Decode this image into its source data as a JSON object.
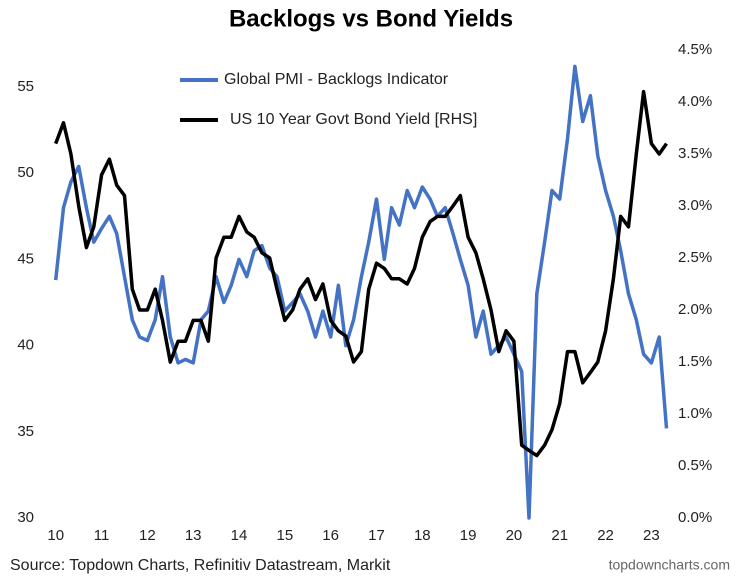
{
  "chart_data": {
    "type": "line",
    "title": "Backlogs vs Bond Yields",
    "source": "Source: Topdown Charts, Refinitiv Datastream, Markit",
    "watermark": "topdowncharts.com",
    "x": [
      10,
      10.17,
      10.33,
      10.5,
      10.67,
      10.83,
      11,
      11.17,
      11.33,
      11.5,
      11.67,
      11.83,
      12,
      12.17,
      12.33,
      12.5,
      12.67,
      12.83,
      13,
      13.17,
      13.33,
      13.5,
      13.67,
      13.83,
      14,
      14.17,
      14.33,
      14.5,
      14.67,
      14.83,
      15,
      15.17,
      15.33,
      15.5,
      15.67,
      15.83,
      16,
      16.17,
      16.33,
      16.5,
      16.67,
      16.83,
      17,
      17.17,
      17.33,
      17.5,
      17.67,
      17.83,
      18,
      18.17,
      18.33,
      18.5,
      18.67,
      18.83,
      19,
      19.17,
      19.33,
      19.5,
      19.67,
      19.83,
      20,
      20.17,
      20.33,
      20.5,
      20.67,
      20.83,
      21,
      21.17,
      21.33,
      21.5,
      21.67,
      21.83,
      22,
      22.17,
      22.33,
      22.5,
      22.67,
      22.83,
      23,
      23.17,
      23.33
    ],
    "xlim": [
      9.7,
      23.45
    ],
    "xticks": [
      10,
      11,
      12,
      13,
      14,
      15,
      16,
      17,
      18,
      19,
      20,
      21,
      22,
      23
    ],
    "ylim": [
      30,
      57.15
    ],
    "yticks": [
      30,
      35,
      40,
      45,
      50,
      55
    ],
    "y2lim": [
      0,
      4.5
    ],
    "y2ticks": [
      {
        "value": 0,
        "label": "0.0%"
      },
      {
        "value": 0.5,
        "label": "0.5%"
      },
      {
        "value": 1,
        "label": "1.0%"
      },
      {
        "value": 1.5,
        "label": "1.5%"
      },
      {
        "value": 2,
        "label": "2.0%"
      },
      {
        "value": 2.5,
        "label": "2.5%"
      },
      {
        "value": 3,
        "label": "3.0%"
      },
      {
        "value": 3.5,
        "label": "3.5%"
      },
      {
        "value": 4,
        "label": "4.0%"
      },
      {
        "value": 4.5,
        "label": "4.5%"
      }
    ],
    "series": [
      {
        "name": "Global PMI - Backlogs Indicator",
        "color": "#4472c4",
        "axis": "y",
        "values": [
          43.8,
          48,
          49.5,
          50.4,
          48,
          46,
          46.8,
          47.5,
          46.5,
          44,
          41.5,
          40.5,
          40.3,
          41.5,
          44,
          40.5,
          39,
          39.2,
          39,
          41.5,
          42,
          44,
          42.5,
          43.5,
          45,
          44,
          45.5,
          45.8,
          44.5,
          44,
          42,
          42.5,
          43,
          42,
          40.5,
          42,
          40.5,
          43.5,
          40,
          41.5,
          44,
          46,
          48.5,
          45,
          48,
          47,
          49,
          48,
          49.2,
          48.5,
          47.5,
          48,
          46.5,
          45,
          43.5,
          40.5,
          42,
          39.5,
          40,
          40.5,
          39.5,
          38.5,
          30,
          43,
          46,
          49,
          48.5,
          52,
          56.2,
          53,
          54.5,
          51,
          49,
          47.5,
          45.5,
          43,
          41.5,
          39.5,
          39,
          40.5,
          35.2
        ]
      },
      {
        "name": "US 10 Year Govt Bond Yield [RHS]",
        "color": "#000000",
        "axis": "y2",
        "values": [
          3.6,
          3.8,
          3.5,
          3.0,
          2.6,
          2.8,
          3.3,
          3.45,
          3.2,
          3.1,
          2.2,
          2.0,
          2.0,
          2.2,
          1.9,
          1.5,
          1.7,
          1.7,
          1.9,
          1.9,
          1.7,
          2.5,
          2.7,
          2.7,
          2.9,
          2.75,
          2.7,
          2.55,
          2.5,
          2.2,
          1.9,
          2.0,
          2.2,
          2.3,
          2.1,
          2.25,
          1.9,
          1.8,
          1.75,
          1.5,
          1.6,
          2.2,
          2.45,
          2.4,
          2.3,
          2.3,
          2.25,
          2.4,
          2.7,
          2.85,
          2.9,
          2.9,
          3.0,
          3.1,
          2.7,
          2.55,
          2.3,
          2.0,
          1.6,
          1.8,
          1.7,
          0.7,
          0.65,
          0.6,
          0.7,
          0.85,
          1.1,
          1.6,
          1.6,
          1.3,
          1.4,
          1.5,
          1.8,
          2.3,
          2.9,
          2.8,
          3.5,
          4.1,
          3.6,
          3.5,
          3.6
        ]
      }
    ]
  }
}
